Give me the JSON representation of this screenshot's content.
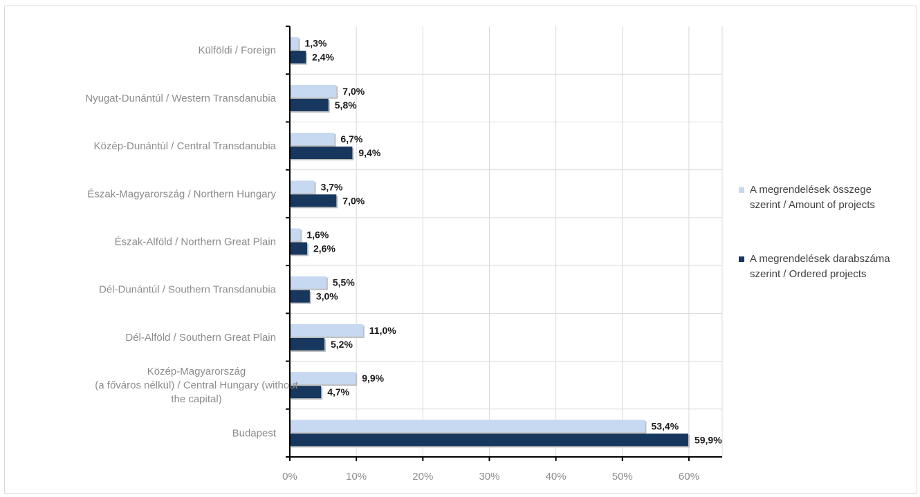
{
  "chart_data": {
    "type": "bar",
    "orientation": "horizontal",
    "categories": [
      "Külföldi / Foreign",
      "Nyugat-Dunántúl / Western Transdanubia",
      "Közép-Dunántúl /  Central Transdanubia",
      "Észak-Magyarország / Northern Hungary",
      "Észak-Alföld / Northern Great Plain",
      "Dél-Dunántúl / Southern Transdanubia",
      "Dél-Alföld / Southern Great Plain",
      "Közép-Magyarország (a főváros nélkül) / Central Hungary (without the capital)",
      "Budapest"
    ],
    "category_lines": [
      [
        "Külföldi / Foreign"
      ],
      [
        "Nyugat-Dunántúl / Western Transdanubia"
      ],
      [
        "Közép-Dunántúl /  Central Transdanubia"
      ],
      [
        "Észak-Magyarország / Northern Hungary"
      ],
      [
        "Észak-Alföld / Northern Great Plain"
      ],
      [
        "Dél-Dunántúl / Southern Transdanubia"
      ],
      [
        "Dél-Alföld / Southern Great Plain"
      ],
      [
        "Közép-Magyarország",
        "(a főváros nélkül) / Central Hungary (without",
        "the capital)"
      ],
      [
        "Budapest"
      ]
    ],
    "series": [
      {
        "name": "A megrendelések összege szerint / Amount of projects",
        "legend_lines": [
          "A megrendelések összege",
          "szerint / Amount of projects"
        ],
        "color": "#c6d9f1",
        "values": [
          1.3,
          7.0,
          6.7,
          3.7,
          1.6,
          5.5,
          11.0,
          9.9,
          53.4
        ],
        "labels": [
          "1,3%",
          "7,0%",
          "6,7%",
          "3,7%",
          "1,6%",
          "5,5%",
          "11,0%",
          "9,9%",
          "53,4%"
        ]
      },
      {
        "name": "A megrendelések darabszáma szerint / Ordered projects",
        "legend_lines": [
          "A megrendelések darabszáma",
          "szerint / Ordered projects"
        ],
        "color": "#17375e",
        "values": [
          2.4,
          5.8,
          9.4,
          7.0,
          2.6,
          3.0,
          5.2,
          4.7,
          59.9
        ],
        "labels": [
          "2,4%",
          "5,8%",
          "9,4%",
          "7,0%",
          "2,6%",
          "3,0%",
          "5,2%",
          "4,7%",
          "59,9%"
        ]
      }
    ],
    "xlim": [
      0,
      65
    ],
    "xticks": [
      0,
      10,
      20,
      30,
      40,
      50,
      60
    ],
    "xtick_labels": [
      "0%",
      "10%",
      "20%",
      "30%",
      "40%",
      "50%",
      "60%"
    ],
    "grid": "vertical",
    "legend_position": "right",
    "title": "",
    "xlabel": "",
    "ylabel": ""
  }
}
